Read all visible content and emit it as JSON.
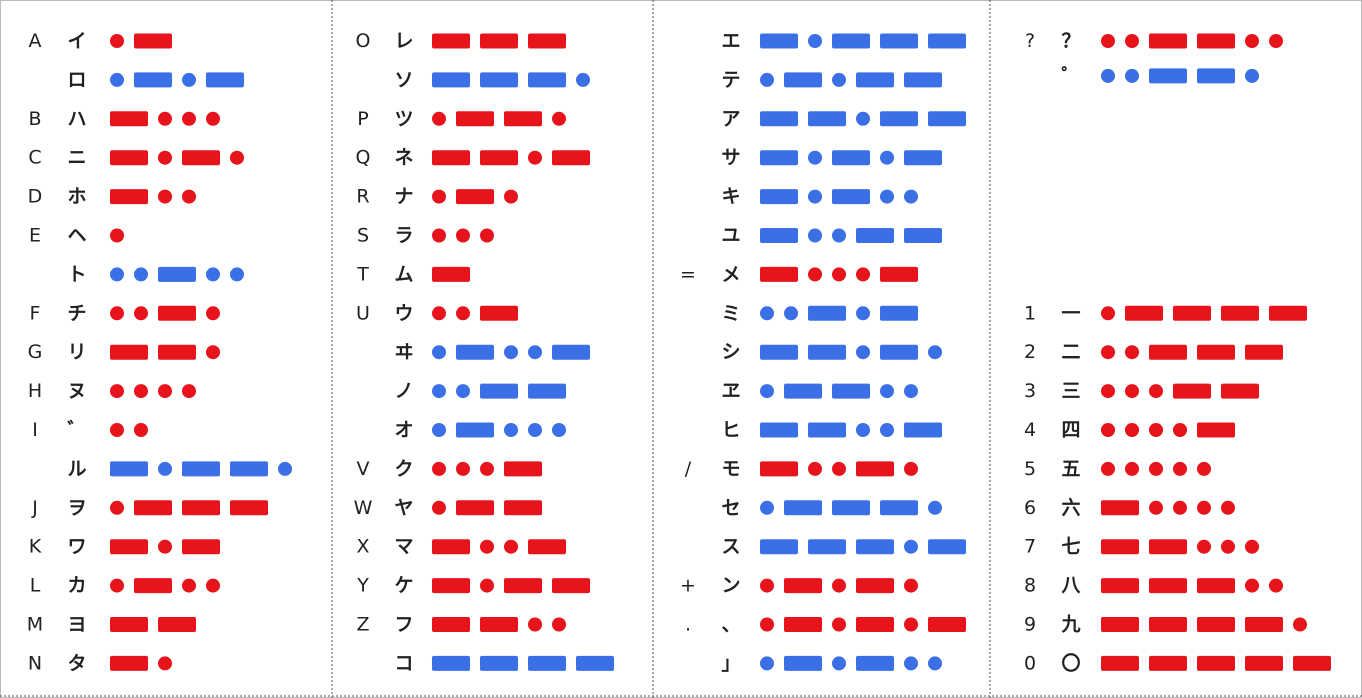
{
  "columns": [
    {
      "rows": [
        {
          "latin": "A",
          "kana": "イ",
          "code": ".-",
          "color": "#e8141b"
        },
        {
          "kana": "ロ",
          "code": ".-.-",
          "color": "#3a6fe6"
        },
        {
          "latin": "B",
          "kana": "ハ",
          "code": "-...",
          "color": "#e8141b"
        },
        {
          "latin": "C",
          "kana": "ニ",
          "code": "-.-.",
          "color": "#e8141b"
        },
        {
          "latin": "D",
          "kana": "ホ",
          "code": "-..",
          "color": "#e8141b"
        },
        {
          "latin": "E",
          "kana": "ヘ",
          "code": ".",
          "color": "#e8141b"
        },
        {
          "kana": "ト",
          "code": "..-..",
          "color": "#3a6fe6"
        },
        {
          "latin": "F",
          "kana": "チ",
          "code": "..-.",
          "color": "#e8141b"
        },
        {
          "latin": "G",
          "kana": "リ",
          "code": "--.",
          "color": "#e8141b"
        },
        {
          "latin": "H",
          "kana": "ヌ",
          "code": "....",
          "color": "#e8141b"
        },
        {
          "latin": "I",
          "kana": "゛",
          "code": "..",
          "color": "#e8141b"
        },
        {
          "kana": "ル",
          "code": "-.--.",
          "color": "#3a6fe6"
        },
        {
          "latin": "J",
          "kana": "ヲ",
          "code": ".---",
          "color": "#e8141b"
        },
        {
          "latin": "K",
          "kana": "ワ",
          "code": "-.-",
          "color": "#e8141b"
        },
        {
          "latin": "L",
          "kana": "カ",
          "code": ".-..",
          "color": "#e8141b"
        },
        {
          "latin": "M",
          "kana": "ヨ",
          "code": "--",
          "color": "#e8141b"
        },
        {
          "latin": "N",
          "kana": "タ",
          "code": "-.",
          "color": "#e8141b"
        }
      ]
    },
    {
      "rows": [
        {
          "latin": "O",
          "kana": "レ",
          "code": "---",
          "color": "#e8141b"
        },
        {
          "kana": "ソ",
          "code": "---.",
          "color": "#3a6fe6"
        },
        {
          "latin": "P",
          "kana": "ツ",
          "code": ".--.",
          "color": "#e8141b"
        },
        {
          "latin": "Q",
          "kana": "ネ",
          "code": "--.-",
          "color": "#e8141b"
        },
        {
          "latin": "R",
          "kana": "ナ",
          "code": ".-.",
          "color": "#e8141b"
        },
        {
          "latin": "S",
          "kana": "ラ",
          "code": "...",
          "color": "#e8141b"
        },
        {
          "latin": "T",
          "kana": "ム",
          "code": "-",
          "color": "#e8141b"
        },
        {
          "latin": "U",
          "kana": "ウ",
          "code": "..-",
          "color": "#e8141b"
        },
        {
          "kana": "ヰ",
          "code": ".-..-",
          "color": "#3a6fe6"
        },
        {
          "kana": "ノ",
          "code": "..--",
          "color": "#3a6fe6"
        },
        {
          "kana": "オ",
          "code": ".-...",
          "color": "#3a6fe6"
        },
        {
          "latin": "V",
          "kana": "ク",
          "code": "...-",
          "color": "#e8141b"
        },
        {
          "latin": "W",
          "kana": "ヤ",
          "code": ".--",
          "color": "#e8141b"
        },
        {
          "latin": "X",
          "kana": "マ",
          "code": "-..-",
          "color": "#e8141b"
        },
        {
          "latin": "Y",
          "kana": "ケ",
          "code": "-.--",
          "color": "#e8141b"
        },
        {
          "latin": "Z",
          "kana": "フ",
          "code": "--..",
          "color": "#e8141b"
        },
        {
          "kana": "コ",
          "code": "----",
          "color": "#3a6fe6"
        }
      ]
    },
    {
      "rows": [
        {
          "kana": "エ",
          "code": "-.---",
          "color": "#3a6fe6"
        },
        {
          "kana": "テ",
          "code": ".-.--",
          "color": "#3a6fe6"
        },
        {
          "kana": "ア",
          "code": "--.--",
          "color": "#3a6fe6"
        },
        {
          "kana": "サ",
          "code": "-.-.-",
          "color": "#3a6fe6"
        },
        {
          "kana": "キ",
          "code": "-.-..",
          "color": "#3a6fe6"
        },
        {
          "kana": "ユ",
          "code": "-..--",
          "color": "#3a6fe6"
        },
        {
          "latin": "=",
          "kana": "メ",
          "code": "-...-",
          "color": "#e8141b"
        },
        {
          "kana": "ミ",
          "code": "..-.-",
          "color": "#3a6fe6"
        },
        {
          "kana": "シ",
          "code": "--.-.",
          "color": "#3a6fe6"
        },
        {
          "kana": "ヱ",
          "code": ".--..",
          "color": "#3a6fe6"
        },
        {
          "kana": "ヒ",
          "code": "--..-",
          "color": "#3a6fe6"
        },
        {
          "latin": "/",
          "kana": "モ",
          "code": "-..-.",
          "color": "#e8141b"
        },
        {
          "kana": "セ",
          "code": ".---.",
          "color": "#3a6fe6"
        },
        {
          "kana": "ス",
          "code": "---.-",
          "color": "#3a6fe6"
        },
        {
          "latin": "+",
          "kana": "ン",
          "code": ".-.-.",
          "color": "#e8141b"
        },
        {
          "latin": ".",
          "kana": "、",
          "code": ".-.-.-",
          "color": "#e8141b"
        },
        {
          "kana": "」",
          "code": ".-.-..",
          "color": "#3a6fe6"
        }
      ]
    },
    {
      "rows": [
        {
          "latin": "?",
          "kana": "？",
          "code": "..--..",
          "color": "#e8141b"
        },
        {
          "kana": "゜",
          "code": "..--.",
          "color": "#3a6fe6"
        },
        {
          "latin": "1",
          "kana": "一",
          "code": ".----",
          "color": "#e8141b"
        },
        {
          "latin": "2",
          "kana": "二",
          "code": "..---",
          "color": "#e8141b"
        },
        {
          "latin": "3",
          "kana": "三",
          "code": "...--",
          "color": "#e8141b"
        },
        {
          "latin": "4",
          "kana": "四",
          "code": "....-",
          "color": "#e8141b"
        },
        {
          "latin": "5",
          "kana": "五",
          "code": ".....",
          "color": "#e8141b"
        },
        {
          "latin": "6",
          "kana": "六",
          "code": "-....",
          "color": "#e8141b"
        },
        {
          "latin": "7",
          "kana": "七",
          "code": "--...",
          "color": "#e8141b"
        },
        {
          "latin": "8",
          "kana": "八",
          "code": "---..",
          "color": "#e8141b"
        },
        {
          "latin": "9",
          "kana": "九",
          "code": "----.",
          "color": "#e8141b"
        },
        {
          "latin": "0",
          "kana": "〇",
          "code": "-----",
          "color": "#e8141b"
        }
      ]
    }
  ]
}
